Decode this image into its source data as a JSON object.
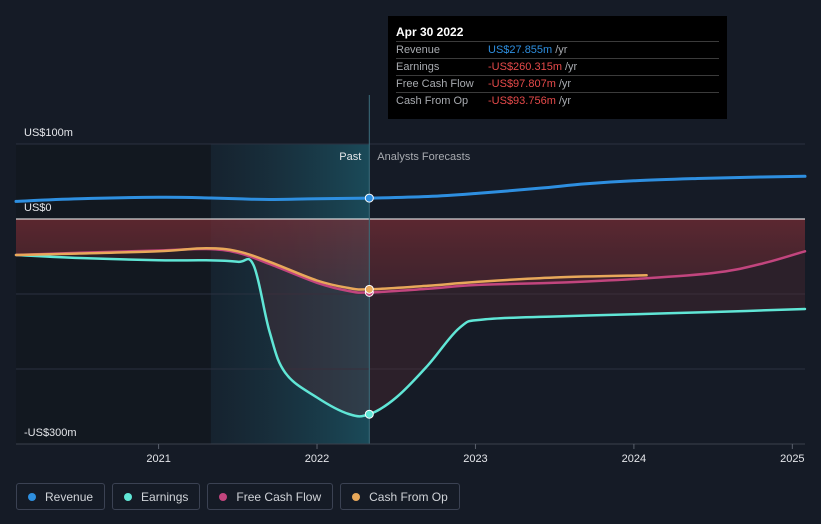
{
  "chart_data": {
    "type": "line",
    "title": "",
    "y_labels": {
      "top": "US$100m",
      "zero": "US$0",
      "bottom": "-US$300m"
    },
    "ylim": [
      -300,
      100
    ],
    "xlim": [
      2020.1,
      2025.08
    ],
    "x_ticks": [
      "2021",
      "2022",
      "2023",
      "2024",
      "2025"
    ],
    "x_tick_values": [
      2021,
      2022,
      2023,
      2024,
      2025
    ],
    "past_label": "Past",
    "forecast_label": "Analysts Forecasts",
    "past_shade_start": 2021.33,
    "divider_x": 2022.33,
    "series": [
      {
        "name": "Revenue",
        "color": "#2e8fe0",
        "points": [
          [
            2020.1,
            23.5
          ],
          [
            2020.5,
            27
          ],
          [
            2021,
            29
          ],
          [
            2021.33,
            28
          ],
          [
            2021.5,
            27
          ],
          [
            2021.7,
            26
          ],
          [
            2022,
            27
          ],
          [
            2022.33,
            27.855
          ],
          [
            2022.7,
            30
          ],
          [
            2023,
            34
          ],
          [
            2023.4,
            41
          ],
          [
            2023.7,
            47
          ],
          [
            2024,
            51
          ],
          [
            2024.4,
            54
          ],
          [
            2024.8,
            56
          ],
          [
            2025.08,
            57
          ]
        ]
      },
      {
        "name": "Earnings",
        "color": "#60e6d6",
        "points": [
          [
            2020.1,
            -48
          ],
          [
            2020.5,
            -52
          ],
          [
            2021,
            -55
          ],
          [
            2021.3,
            -55
          ],
          [
            2021.5,
            -57
          ],
          [
            2021.6,
            -62
          ],
          [
            2021.7,
            -150
          ],
          [
            2021.8,
            -205
          ],
          [
            2022,
            -238
          ],
          [
            2022.2,
            -260
          ],
          [
            2022.33,
            -260.315
          ],
          [
            2022.5,
            -238
          ],
          [
            2022.7,
            -195
          ],
          [
            2022.9,
            -145
          ],
          [
            2023.05,
            -134
          ],
          [
            2023.5,
            -130
          ],
          [
            2024,
            -127
          ],
          [
            2024.5,
            -124
          ],
          [
            2025.08,
            -120
          ]
        ]
      },
      {
        "name": "Free Cash Flow",
        "color": "#c2457e",
        "points": [
          [
            2020.1,
            -48
          ],
          [
            2020.5,
            -45
          ],
          [
            2021,
            -42
          ],
          [
            2021.3,
            -40
          ],
          [
            2021.5,
            -45
          ],
          [
            2021.7,
            -60
          ],
          [
            2022,
            -85
          ],
          [
            2022.2,
            -96
          ],
          [
            2022.33,
            -97.807
          ],
          [
            2022.7,
            -93
          ],
          [
            2023,
            -88
          ],
          [
            2023.5,
            -85
          ],
          [
            2024,
            -80
          ],
          [
            2024.5,
            -72
          ],
          [
            2024.8,
            -60
          ],
          [
            2025.08,
            -43
          ]
        ]
      },
      {
        "name": "Cash From Op",
        "color": "#e8a85a",
        "points": [
          [
            2020.1,
            -48
          ],
          [
            2020.5,
            -46
          ],
          [
            2021,
            -43
          ],
          [
            2021.3,
            -39
          ],
          [
            2021.5,
            -43
          ],
          [
            2021.7,
            -57
          ],
          [
            2022,
            -82
          ],
          [
            2022.2,
            -92
          ],
          [
            2022.33,
            -93.756
          ],
          [
            2022.7,
            -89
          ],
          [
            2023,
            -84
          ],
          [
            2023.5,
            -78
          ],
          [
            2024.08,
            -75
          ]
        ]
      }
    ],
    "markers": [
      {
        "series": "Revenue",
        "x": 2022.33,
        "y": 27.855
      },
      {
        "series": "Earnings",
        "x": 2022.33,
        "y": -260.315
      },
      {
        "series": "Free Cash Flow",
        "x": 2022.33,
        "y": -97.807
      },
      {
        "series": "Cash From Op",
        "x": 2022.33,
        "y": -93.756
      }
    ]
  },
  "tooltip": {
    "date": "Apr 30 2022",
    "rows": [
      {
        "label": "Revenue",
        "value": "US$27.855m",
        "unit": "/yr",
        "color": "#2e8fe0"
      },
      {
        "label": "Earnings",
        "value": "-US$260.315m",
        "unit": "/yr",
        "color": "#e64a4a"
      },
      {
        "label": "Free Cash Flow",
        "value": "-US$97.807m",
        "unit": "/yr",
        "color": "#e64a4a"
      },
      {
        "label": "Cash From Op",
        "value": "-US$93.756m",
        "unit": "/yr",
        "color": "#e64a4a"
      }
    ]
  },
  "legend": [
    {
      "label": "Revenue",
      "color": "#2e8fe0"
    },
    {
      "label": "Earnings",
      "color": "#60e6d6"
    },
    {
      "label": "Free Cash Flow",
      "color": "#c2457e"
    },
    {
      "label": "Cash From Op",
      "color": "#e8a85a"
    }
  ]
}
